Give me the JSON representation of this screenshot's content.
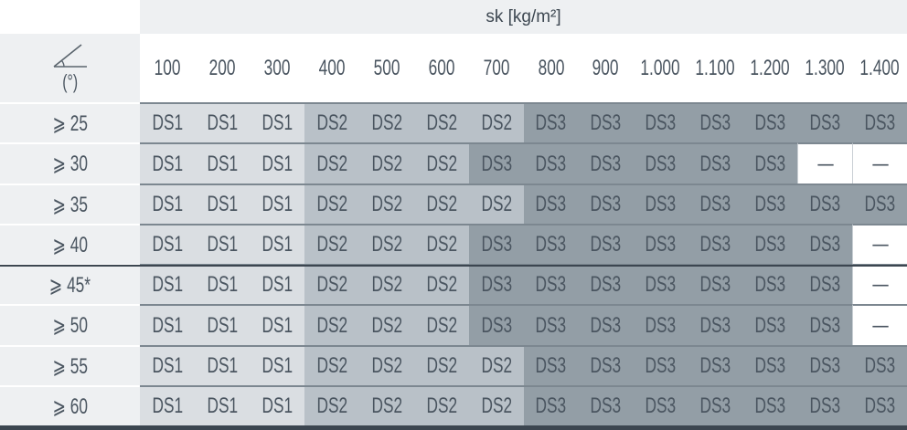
{
  "header": {
    "unit_label": "sk [kg/m²]",
    "angle_unit": "(°)",
    "angle_icon": "angle-icon",
    "columns": [
      "100",
      "200",
      "300",
      "400",
      "500",
      "600",
      "700",
      "800",
      "900",
      "1.000",
      "1.100",
      "1.200",
      "1.300",
      "1.400"
    ]
  },
  "colors": {
    "DS1": "#dadee2",
    "DS2": "#b9c1c8",
    "DS3": "#939ea6",
    "none": "#ffffff",
    "label_bg": "#eef0f2",
    "text": "#4a5560"
  },
  "rows": [
    {
      "label": "⩾ 25",
      "cells": [
        "DS1",
        "DS1",
        "DS1",
        "DS2",
        "DS2",
        "DS2",
        "DS2",
        "DS3",
        "DS3",
        "DS3",
        "DS3",
        "DS3",
        "DS3",
        "DS3"
      ]
    },
    {
      "label": "⩾ 30",
      "cells": [
        "DS1",
        "DS1",
        "DS1",
        "DS2",
        "DS2",
        "DS2",
        "DS3",
        "DS3",
        "DS3",
        "DS3",
        "DS3",
        "DS3",
        "—",
        "—"
      ]
    },
    {
      "label": "⩾ 35",
      "cells": [
        "DS1",
        "DS1",
        "DS1",
        "DS2",
        "DS2",
        "DS2",
        "DS2",
        "DS3",
        "DS3",
        "DS3",
        "DS3",
        "DS3",
        "DS3",
        "DS3"
      ]
    },
    {
      "label": "⩾ 40",
      "cells": [
        "DS1",
        "DS1",
        "DS1",
        "DS2",
        "DS2",
        "DS2",
        "DS3",
        "DS3",
        "DS3",
        "DS3",
        "DS3",
        "DS3",
        "DS3",
        "—"
      ]
    },
    {
      "label": "⩾ 45*",
      "cells": [
        "DS1",
        "DS1",
        "DS1",
        "DS2",
        "DS2",
        "DS2",
        "DS3",
        "DS3",
        "DS3",
        "DS3",
        "DS3",
        "DS3",
        "DS3",
        "—"
      ]
    },
    {
      "label": "⩾ 50",
      "cells": [
        "DS1",
        "DS1",
        "DS1",
        "DS2",
        "DS2",
        "DS2",
        "DS3",
        "DS3",
        "DS3",
        "DS3",
        "DS3",
        "DS3",
        "DS3",
        "—"
      ]
    },
    {
      "label": "⩾ 55",
      "cells": [
        "DS1",
        "DS1",
        "DS1",
        "DS2",
        "DS2",
        "DS2",
        "DS2",
        "DS3",
        "DS3",
        "DS3",
        "DS3",
        "DS3",
        "DS3",
        "DS3"
      ]
    },
    {
      "label": "⩾ 60",
      "cells": [
        "DS1",
        "DS1",
        "DS1",
        "DS2",
        "DS2",
        "DS2",
        "DS2",
        "DS3",
        "DS3",
        "DS3",
        "DS3",
        "DS3",
        "DS3",
        "DS3"
      ]
    }
  ]
}
